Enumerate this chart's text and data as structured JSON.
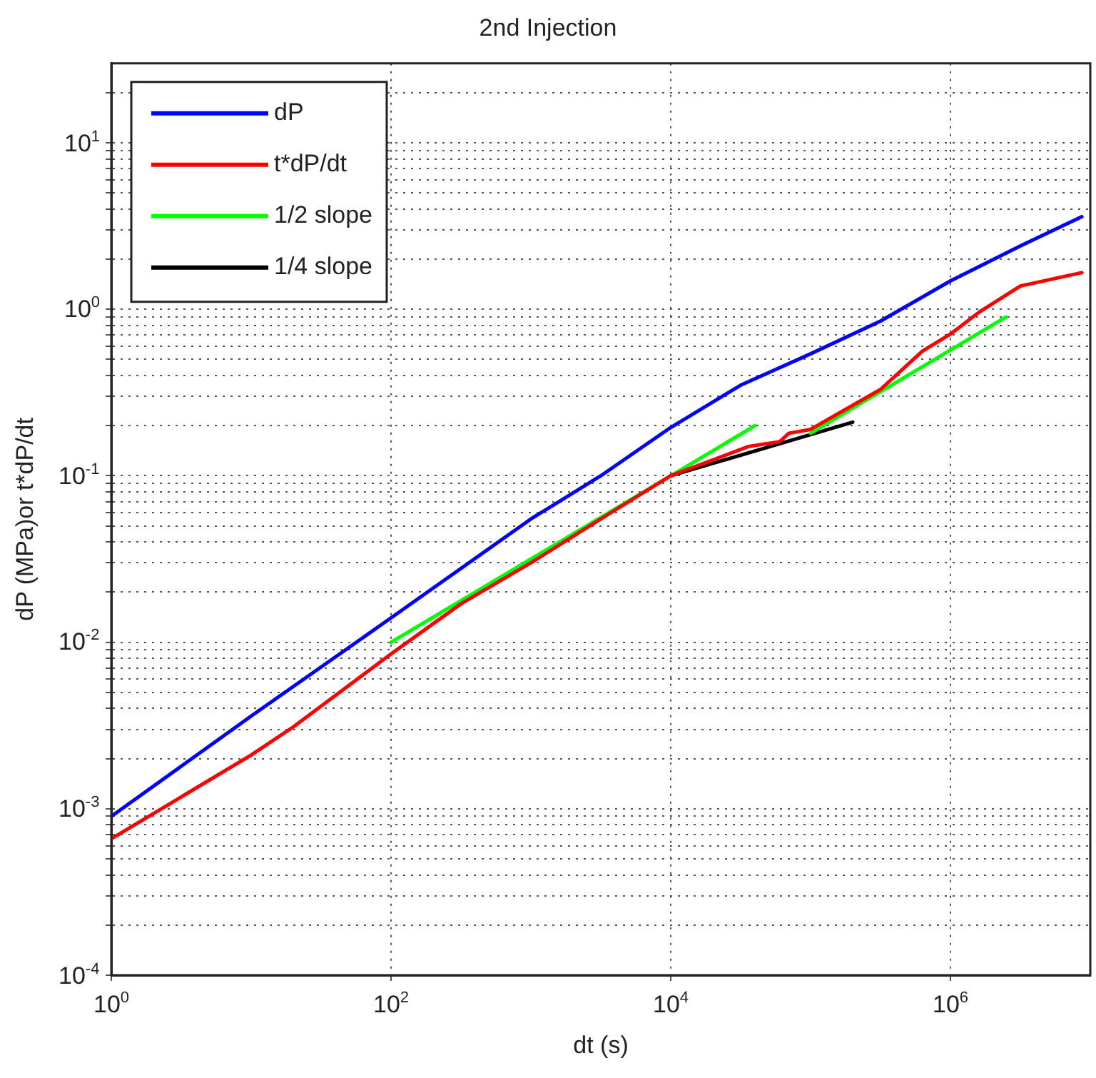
{
  "chart_data": {
    "type": "line",
    "title": "2nd Injection",
    "xlabel": "dt (s)",
    "ylabel": "dP (MPa)or t*dP/dt",
    "log": "xy",
    "grid": true,
    "legend": "top left",
    "marker": "none",
    "line_style": "solid",
    "xlim": [
      1,
      10000000
    ],
    "xticks": [
      {
        "value": 1,
        "label": "10$^{0}$"
      },
      {
        "value": 100,
        "label": "10$^{2}$"
      },
      {
        "value": 10000,
        "label": "10$^{4}$"
      },
      {
        "value": 1000000,
        "label": "10$^{6}$"
      }
    ],
    "ylim": [
      0.0001,
      30
    ],
    "yticks": [
      {
        "value": 0.0001,
        "label": "10$^{-4}$"
      },
      {
        "value": 0.0002,
        "label": null
      },
      {
        "value": 0.0003,
        "label": null
      },
      {
        "value": 0.0004,
        "label": null
      },
      {
        "value": 0.0005,
        "label": null
      },
      {
        "value": 0.0006,
        "label": null
      },
      {
        "value": 0.0007,
        "label": null
      },
      {
        "value": 0.0008,
        "label": null
      },
      {
        "value": 0.0009,
        "label": null
      },
      {
        "value": 0.001,
        "label": "10$^{-3}$"
      },
      {
        "value": 0.002,
        "label": null
      },
      {
        "value": 0.003,
        "label": null
      },
      {
        "value": 0.004,
        "label": null
      },
      {
        "value": 0.005,
        "label": null
      },
      {
        "value": 0.006,
        "label": null
      },
      {
        "value": 0.007,
        "label": null
      },
      {
        "value": 0.008,
        "label": null
      },
      {
        "value": 0.009,
        "label": null
      },
      {
        "value": 0.01,
        "label": "10$^{-2}$"
      },
      {
        "value": 0.02,
        "label": null
      },
      {
        "value": 0.03,
        "label": null
      },
      {
        "value": 0.04,
        "label": null
      },
      {
        "value": 0.05,
        "label": null
      },
      {
        "value": 0.06,
        "label": null
      },
      {
        "value": 0.07,
        "label": null
      },
      {
        "value": 0.08,
        "label": null
      },
      {
        "value": 0.09,
        "label": null
      },
      {
        "value": 0.1,
        "label": "10$^{-1}$"
      },
      {
        "value": 0.2,
        "label": null
      },
      {
        "value": 0.3,
        "label": null
      },
      {
        "value": 0.4,
        "label": null
      },
      {
        "value": 0.5,
        "label": null
      },
      {
        "value": 0.6,
        "label": null
      },
      {
        "value": 0.7,
        "label": null
      },
      {
        "value": 0.8,
        "label": null
      },
      {
        "value": 0.9,
        "label": null
      },
      {
        "value": 1,
        "label": "10$^{0}$"
      },
      {
        "value": 2,
        "label": null
      },
      {
        "value": 3,
        "label": null
      },
      {
        "value": 4,
        "label": null
      },
      {
        "value": 5,
        "label": null
      },
      {
        "value": 6,
        "label": null
      },
      {
        "value": 7,
        "label": null
      },
      {
        "value": 8,
        "label": null
      },
      {
        "value": 9,
        "label": null
      },
      {
        "value": 10,
        "label": "10$^{1}$"
      },
      {
        "value": 20,
        "label": null
      }
    ],
    "series": [
      {
        "name": "dP",
        "color": "#0000ff",
        "x": [
          1,
          10,
          100,
          1000,
          3162,
          10000,
          31623,
          100000,
          316228,
          1000000,
          3162278,
          8700000
        ],
        "values": [
          0.0009,
          0.0036,
          0.014,
          0.055,
          0.1,
          0.195,
          0.35,
          0.54,
          0.85,
          1.48,
          2.4,
          3.6
        ]
      },
      {
        "name": "t*dP/dt",
        "color": "#ff0000",
        "x": [
          1,
          10,
          20,
          100,
          316,
          1000,
          3162,
          10000,
          36000,
          60000,
          70000,
          100000,
          316228,
          630000,
          1000000,
          1600000,
          3162278,
          8700000
        ],
        "values": [
          0.00066,
          0.0021,
          0.0031,
          0.0085,
          0.017,
          0.03,
          0.055,
          0.1,
          0.15,
          0.16,
          0.18,
          0.19,
          0.33,
          0.56,
          0.71,
          0.96,
          1.38,
          1.66
        ]
      },
      {
        "name": "1/2 slope",
        "color": "#00ff00",
        "x": [
          100,
          40000,
          60000,
          100000,
          2500000
        ],
        "values": [
          0.01,
          0.2,
          null,
          0.18,
          0.9
        ]
      },
      {
        "name": "1/4 slope",
        "color": "#000000",
        "x": [
          10000,
          200000
        ],
        "values": [
          0.1,
          0.21
        ]
      }
    ]
  }
}
